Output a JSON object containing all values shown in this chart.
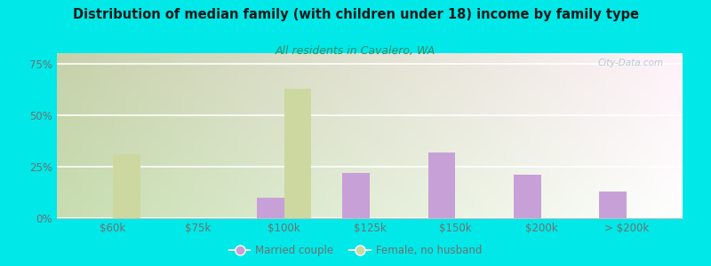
{
  "title": "Distribution of median family (with children under 18) income by family type",
  "subtitle": "All residents in Cavalero, WA",
  "categories": [
    "$60k",
    "$75k",
    "$100k",
    "$125k",
    "$150k",
    "$200k",
    "> $200k"
  ],
  "married_couple": [
    0,
    0,
    10,
    22,
    32,
    21,
    13
  ],
  "female_no_husband": [
    31,
    0,
    63,
    0,
    0,
    0,
    0
  ],
  "married_color": "#c8a0d8",
  "female_color": "#ccd8a0",
  "background_outer": "#00e8e8",
  "title_color": "#1a1a1a",
  "subtitle_color": "#3a8a6a",
  "axis_color": "#505050",
  "tick_color": "#707070",
  "ylim": [
    0,
    80
  ],
  "yticks": [
    0,
    25,
    50,
    75
  ],
  "ytick_labels": [
    "0%",
    "25%",
    "50%",
    "75%"
  ],
  "bar_width": 0.32,
  "watermark": "City-Data.com",
  "grid_color": "#e0e0e0",
  "plot_bg_left": "#c8ddb0",
  "plot_bg_right": "#f0f5ee"
}
